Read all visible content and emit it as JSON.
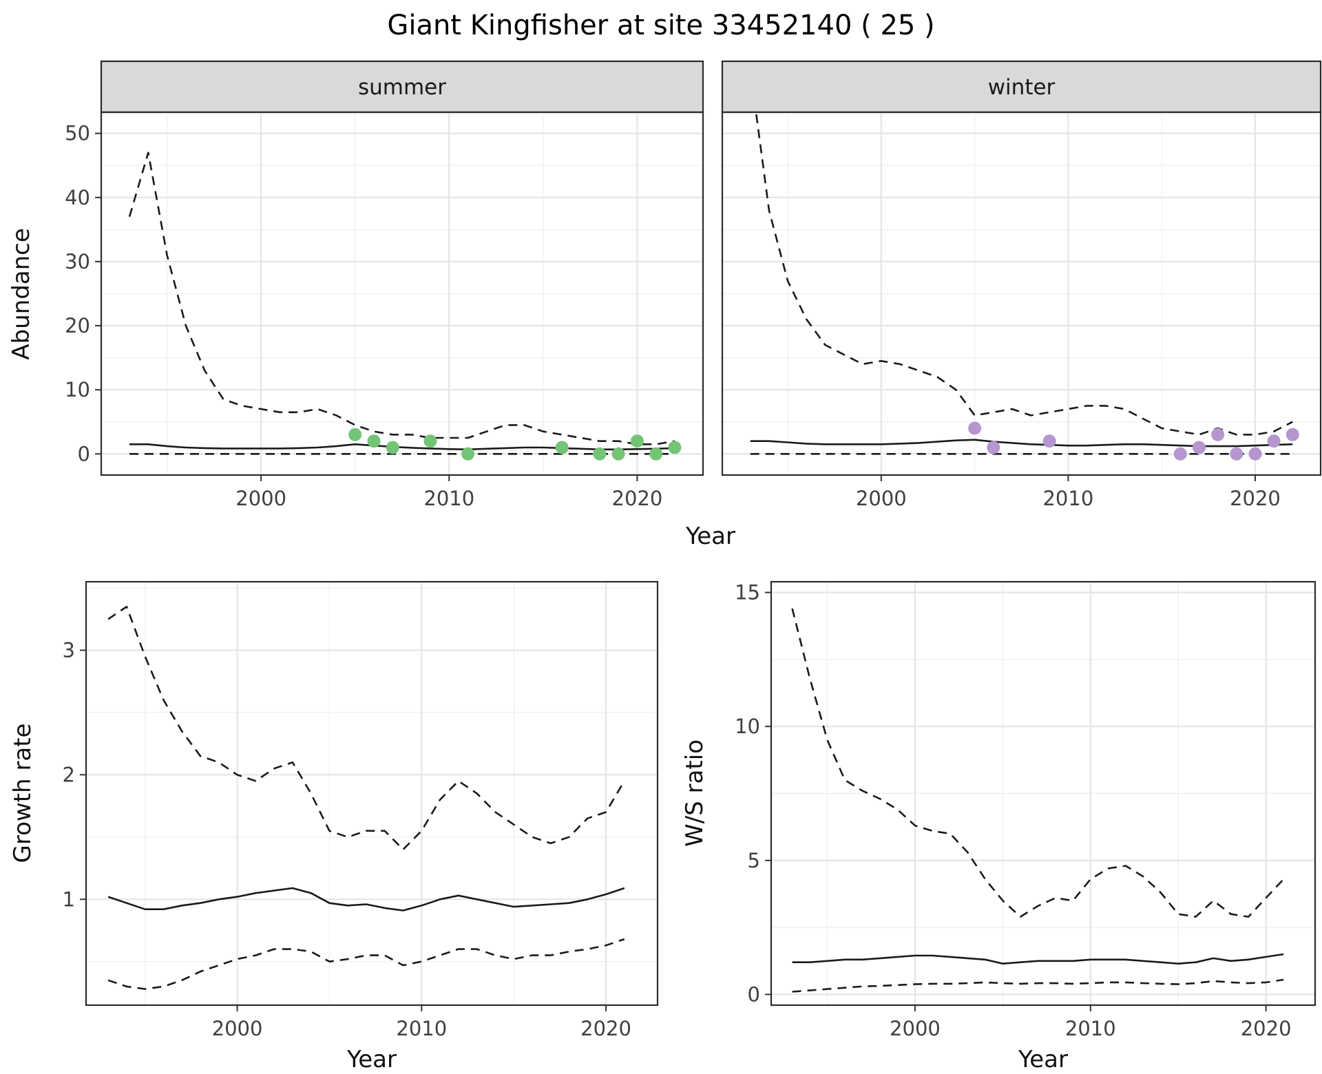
{
  "title": "Giant Kingfisher at site 33452140 ( 25 )",
  "colors": {
    "summer_points": "#74c476",
    "winter_points": "#b596cf",
    "line": "#1a1a1a",
    "strip_bg": "#d9d9d9",
    "panel_border": "#2b2b2b",
    "grid_major": "#e4e4e4",
    "grid_minor": "#f0f0f0"
  },
  "chart_data": [
    {
      "id": "abundance_summer",
      "type": "line",
      "facet_label": "summer",
      "xlabel": "Year",
      "ylabel": "Abundance",
      "xlim": [
        1991.5,
        2023.5
      ],
      "ylim": [
        -3.3,
        53.3
      ],
      "xticks": [
        2000,
        2010,
        2020
      ],
      "xminor": [
        1995,
        2005,
        2015
      ],
      "yticks": [
        0,
        10,
        20,
        30,
        40,
        50
      ],
      "yminor": [
        5,
        15,
        25,
        35,
        45
      ],
      "x": [
        1993,
        1994,
        1995,
        1996,
        1997,
        1998,
        1999,
        2000,
        2001,
        2002,
        2003,
        2004,
        2005,
        2006,
        2007,
        2008,
        2009,
        2010,
        2011,
        2012,
        2013,
        2014,
        2015,
        2016,
        2017,
        2018,
        2019,
        2020,
        2021,
        2022
      ],
      "series": [
        {
          "name": "upper_ci",
          "style": "dashed",
          "values": [
            37,
            47,
            31,
            20,
            13,
            8.5,
            7.5,
            7,
            6.5,
            6.5,
            7,
            6,
            4.5,
            3.5,
            3,
            3,
            2.5,
            2.5,
            2.5,
            3.5,
            4.5,
            4.5,
            3.5,
            3,
            2.5,
            2,
            2,
            1.5,
            1.5,
            2
          ]
        },
        {
          "name": "mean",
          "style": "solid",
          "values": [
            1.5,
            1.5,
            1.2,
            1.0,
            0.9,
            0.85,
            0.85,
            0.85,
            0.85,
            0.9,
            1.0,
            1.2,
            1.5,
            1.3,
            1.1,
            0.95,
            0.85,
            0.75,
            0.7,
            0.8,
            0.9,
            1.0,
            1.0,
            0.9,
            0.8,
            0.7,
            0.7,
            0.75,
            0.8,
            0.9
          ]
        },
        {
          "name": "lower_ci",
          "style": "dashed",
          "values": [
            0,
            0,
            0,
            0,
            0,
            0,
            0,
            0,
            0,
            0,
            0,
            0,
            0,
            0,
            0,
            0,
            0,
            0,
            0,
            0,
            0,
            0,
            0,
            0,
            0,
            0,
            0,
            0,
            0,
            0
          ]
        }
      ],
      "points": {
        "name": "observed_counts",
        "color": "#74c476",
        "x": [
          2005,
          2006,
          2007,
          2009,
          2011,
          2016,
          2018,
          2019,
          2020,
          2021,
          2022
        ],
        "y": [
          3,
          2,
          1,
          2,
          0,
          1,
          0,
          0,
          2,
          0,
          1
        ]
      }
    },
    {
      "id": "abundance_winter",
      "type": "line",
      "facet_label": "winter",
      "xlabel": "Year",
      "ylabel": "Abundance",
      "xlim": [
        1991.5,
        2023.5
      ],
      "ylim": [
        -3.3,
        53.3
      ],
      "xticks": [
        2000,
        2010,
        2020
      ],
      "xminor": [
        1995,
        2005,
        2015
      ],
      "yticks": [
        0,
        10,
        20,
        30,
        40,
        50
      ],
      "yminor": [
        5,
        15,
        25,
        35,
        45
      ],
      "x": [
        1993,
        1994,
        1995,
        1996,
        1997,
        1998,
        1999,
        2000,
        2001,
        2002,
        2003,
        2004,
        2005,
        2006,
        2007,
        2008,
        2009,
        2010,
        2011,
        2012,
        2013,
        2014,
        2015,
        2016,
        2017,
        2018,
        2019,
        2020,
        2021,
        2022
      ],
      "series": [
        {
          "name": "upper_ci",
          "style": "dashed",
          "values": [
            60,
            38,
            27,
            21,
            17,
            15.5,
            14,
            14.5,
            14,
            13,
            12,
            10,
            6,
            6.5,
            7,
            6,
            6.5,
            7,
            7.5,
            7.5,
            7,
            5.5,
            4,
            3.5,
            3,
            4,
            3,
            3,
            3.5,
            5
          ]
        },
        {
          "name": "mean",
          "style": "solid",
          "values": [
            2,
            2,
            1.8,
            1.6,
            1.5,
            1.5,
            1.5,
            1.5,
            1.6,
            1.7,
            1.9,
            2.1,
            2.2,
            1.9,
            1.7,
            1.5,
            1.4,
            1.3,
            1.3,
            1.4,
            1.5,
            1.5,
            1.4,
            1.3,
            1.2,
            1.2,
            1.2,
            1.3,
            1.4,
            1.5
          ]
        },
        {
          "name": "lower_ci",
          "style": "dashed",
          "values": [
            0,
            0,
            0,
            0,
            0,
            0,
            0,
            0,
            0,
            0,
            0,
            0,
            0,
            0,
            0,
            0,
            0,
            0,
            0,
            0,
            0,
            0,
            0,
            0,
            0,
            0,
            0,
            0,
            0,
            0
          ]
        }
      ],
      "points": {
        "name": "observed_counts",
        "color": "#b596cf",
        "x": [
          2005,
          2006,
          2009,
          2016,
          2017,
          2018,
          2019,
          2020,
          2021,
          2022
        ],
        "y": [
          4,
          1,
          2,
          0,
          1,
          3,
          0,
          0,
          2,
          3
        ]
      }
    },
    {
      "id": "growth_rate",
      "type": "line",
      "facet_label": "",
      "xlabel": "Year",
      "ylabel": "Growth rate",
      "xlim": [
        1991.8,
        2022.8
      ],
      "ylim": [
        0.15,
        3.55
      ],
      "xticks": [
        2000,
        2010,
        2020
      ],
      "xminor": [
        1995,
        2005,
        2015
      ],
      "yticks": [
        1,
        2,
        3
      ],
      "yminor": [
        0.5,
        1.5,
        2.5,
        3.5
      ],
      "x": [
        1993,
        1994,
        1995,
        1996,
        1997,
        1998,
        1999,
        2000,
        2001,
        2002,
        2003,
        2004,
        2005,
        2006,
        2007,
        2008,
        2009,
        2010,
        2011,
        2012,
        2013,
        2014,
        2015,
        2016,
        2017,
        2018,
        2019,
        2020,
        2021
      ],
      "series": [
        {
          "name": "upper_ci",
          "style": "dashed",
          "values": [
            3.25,
            3.35,
            2.95,
            2.6,
            2.35,
            2.15,
            2.1,
            2.0,
            1.95,
            2.05,
            2.1,
            1.85,
            1.55,
            1.5,
            1.55,
            1.55,
            1.4,
            1.55,
            1.8,
            1.95,
            1.85,
            1.7,
            1.6,
            1.5,
            1.45,
            1.5,
            1.65,
            1.7,
            1.95
          ]
        },
        {
          "name": "mean",
          "style": "solid",
          "values": [
            1.02,
            0.97,
            0.92,
            0.92,
            0.95,
            0.97,
            1.0,
            1.02,
            1.05,
            1.07,
            1.09,
            1.05,
            0.97,
            0.95,
            0.96,
            0.93,
            0.91,
            0.95,
            1.0,
            1.03,
            1.0,
            0.97,
            0.94,
            0.95,
            0.96,
            0.97,
            1.0,
            1.04,
            1.09
          ]
        },
        {
          "name": "lower_ci",
          "style": "dashed",
          "values": [
            0.35,
            0.3,
            0.28,
            0.3,
            0.35,
            0.42,
            0.47,
            0.52,
            0.55,
            0.6,
            0.6,
            0.58,
            0.5,
            0.52,
            0.55,
            0.55,
            0.47,
            0.5,
            0.55,
            0.6,
            0.6,
            0.55,
            0.52,
            0.55,
            0.55,
            0.58,
            0.6,
            0.63,
            0.68
          ]
        }
      ]
    },
    {
      "id": "ws_ratio",
      "type": "line",
      "facet_label": "",
      "xlabel": "Year",
      "ylabel": "W/S ratio",
      "xlim": [
        1991.8,
        2022.8
      ],
      "ylim": [
        -0.4,
        15.4
      ],
      "xticks": [
        2000,
        2010,
        2020
      ],
      "xminor": [
        1995,
        2005,
        2015
      ],
      "yticks": [
        0,
        5,
        10,
        15
      ],
      "yminor": [
        2.5,
        7.5,
        12.5
      ],
      "x": [
        1993,
        1994,
        1995,
        1996,
        1997,
        1998,
        1999,
        2000,
        2001,
        2002,
        2003,
        2004,
        2005,
        2006,
        2007,
        2008,
        2009,
        2010,
        2011,
        2012,
        2013,
        2014,
        2015,
        2016,
        2017,
        2018,
        2019,
        2020,
        2021
      ],
      "series": [
        {
          "name": "upper_ci",
          "style": "dashed",
          "values": [
            14.4,
            11.8,
            9.5,
            8.0,
            7.6,
            7.3,
            6.9,
            6.3,
            6.1,
            6.0,
            5.3,
            4.3,
            3.5,
            2.9,
            3.3,
            3.6,
            3.5,
            4.3,
            4.7,
            4.8,
            4.4,
            3.8,
            3.0,
            2.9,
            3.5,
            3.0,
            2.9,
            3.6,
            4.3
          ]
        },
        {
          "name": "mean",
          "style": "solid",
          "values": [
            1.2,
            1.2,
            1.25,
            1.3,
            1.3,
            1.35,
            1.4,
            1.45,
            1.45,
            1.4,
            1.35,
            1.3,
            1.15,
            1.2,
            1.25,
            1.25,
            1.25,
            1.3,
            1.3,
            1.3,
            1.25,
            1.2,
            1.15,
            1.2,
            1.35,
            1.25,
            1.3,
            1.4,
            1.5
          ]
        },
        {
          "name": "lower_ci",
          "style": "dashed",
          "values": [
            0.1,
            0.15,
            0.2,
            0.25,
            0.3,
            0.32,
            0.35,
            0.38,
            0.4,
            0.4,
            0.42,
            0.45,
            0.42,
            0.4,
            0.42,
            0.42,
            0.4,
            0.42,
            0.45,
            0.45,
            0.42,
            0.4,
            0.38,
            0.42,
            0.5,
            0.45,
            0.42,
            0.45,
            0.55
          ]
        }
      ]
    }
  ]
}
